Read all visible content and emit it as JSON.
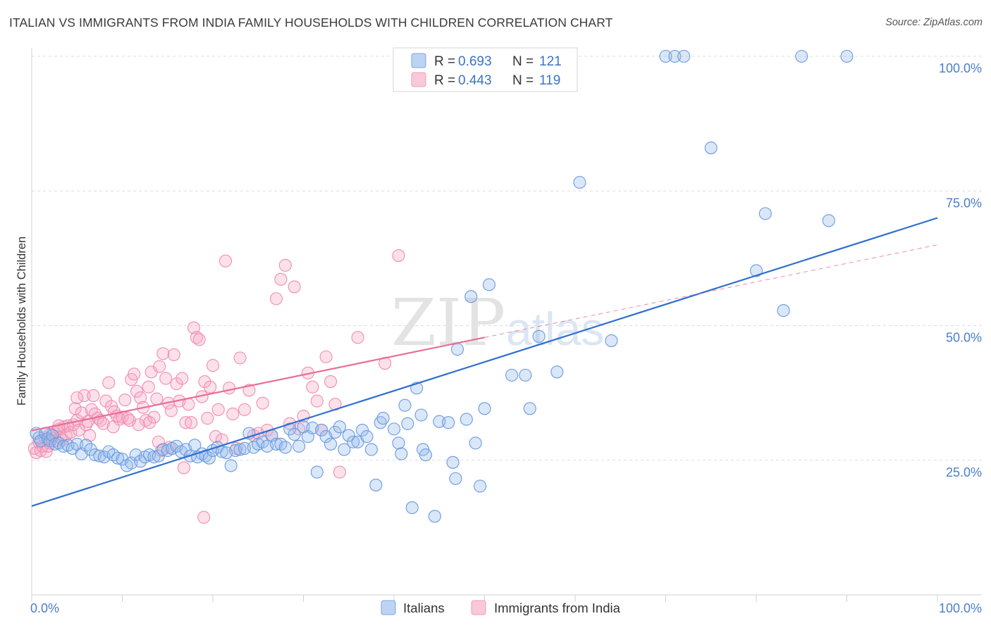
{
  "title": "ITALIAN VS IMMIGRANTS FROM INDIA FAMILY HOUSEHOLDS WITH CHILDREN CORRELATION CHART",
  "source": "Source: ZipAtlas.com",
  "watermark": {
    "zip": "ZIP",
    "atlas": "atlas"
  },
  "colors": {
    "italians": "#6a9be0",
    "india": "#f08db0",
    "italians_line": "#2f6fd0",
    "india_line": "#e86d96",
    "tick_label": "#4a7fc8",
    "grid": "#dcdcdc"
  },
  "legend": {
    "rows": [
      {
        "r_label": "R =",
        "r_value": "0.693",
        "n_label": "N =",
        "n_value": "121"
      },
      {
        "r_label": "R =",
        "r_value": "0.443",
        "n_label": "N =",
        "n_value": "119"
      }
    ]
  },
  "bottom_legend": [
    "Italians",
    "Immigrants from India"
  ],
  "chart_data": {
    "type": "scatter",
    "title": "ITALIAN VS IMMIGRANTS FROM INDIA FAMILY HOUSEHOLDS WITH CHILDREN CORRELATION CHART",
    "xlabel": "",
    "ylabel": "Family Households with Children",
    "xlim": [
      0,
      100
    ],
    "ylim": [
      0,
      100
    ],
    "x_tick_labels": [
      "0.0%",
      "100.0%"
    ],
    "y_tick_labels": [
      "100.0%",
      "75.0%",
      "50.0%",
      "25.0%"
    ],
    "y_ticks": [
      100,
      75,
      50,
      25
    ],
    "grid": true,
    "legend_position": "top-center",
    "series": [
      {
        "name": "Italians",
        "r": 0.693,
        "n": 121,
        "trend": {
          "x0": 0,
          "y0": 16.5,
          "x1": 100,
          "y1": 70.0,
          "style": "solid"
        },
        "points": [
          [
            0.5,
            30.0
          ],
          [
            0.8,
            29.2
          ],
          [
            1.0,
            28.6
          ],
          [
            1.5,
            30.0
          ],
          [
            1.8,
            29.0
          ],
          [
            2.0,
            28.6
          ],
          [
            2.3,
            29.6
          ],
          [
            2.6,
            28.0
          ],
          [
            3.0,
            28.2
          ],
          [
            3.5,
            27.6
          ],
          [
            4.0,
            27.8
          ],
          [
            4.5,
            27.2
          ],
          [
            5.0,
            28.0
          ],
          [
            5.5,
            26.2
          ],
          [
            6.0,
            27.8
          ],
          [
            6.5,
            27.0
          ],
          [
            7.0,
            26.0
          ],
          [
            7.5,
            25.8
          ],
          [
            8.0,
            25.6
          ],
          [
            8.5,
            26.6
          ],
          [
            9.0,
            26.0
          ],
          [
            9.5,
            25.4
          ],
          [
            10.0,
            25.2
          ],
          [
            10.5,
            24.0
          ],
          [
            11.0,
            24.5
          ],
          [
            11.5,
            26.0
          ],
          [
            12.0,
            24.8
          ],
          [
            12.5,
            25.6
          ],
          [
            13.0,
            26.0
          ],
          [
            13.5,
            25.6
          ],
          [
            14.0,
            25.8
          ],
          [
            14.5,
            27.0
          ],
          [
            15.0,
            26.8
          ],
          [
            15.5,
            27.2
          ],
          [
            16.0,
            27.6
          ],
          [
            16.5,
            26.6
          ],
          [
            17.0,
            27.0
          ],
          [
            17.5,
            25.8
          ],
          [
            18.0,
            27.8
          ],
          [
            18.3,
            25.6
          ],
          [
            18.8,
            26.2
          ],
          [
            19.2,
            25.8
          ],
          [
            19.6,
            25.4
          ],
          [
            20.0,
            26.8
          ],
          [
            20.5,
            27.4
          ],
          [
            21.0,
            26.6
          ],
          [
            21.5,
            26.4
          ],
          [
            22.0,
            24.0
          ],
          [
            22.5,
            26.8
          ],
          [
            23.0,
            27.0
          ],
          [
            23.5,
            27.2
          ],
          [
            24.0,
            30.0
          ],
          [
            24.5,
            27.4
          ],
          [
            25.0,
            28.0
          ],
          [
            25.5,
            28.4
          ],
          [
            26.0,
            27.6
          ],
          [
            26.5,
            29.6
          ],
          [
            27.0,
            28.0
          ],
          [
            27.5,
            28.0
          ],
          [
            28.0,
            27.4
          ],
          [
            28.5,
            30.8
          ],
          [
            29.0,
            29.8
          ],
          [
            29.5,
            27.6
          ],
          [
            30.0,
            31.2
          ],
          [
            30.5,
            29.4
          ],
          [
            31.0,
            31.0
          ],
          [
            31.5,
            22.8
          ],
          [
            32.0,
            30.6
          ],
          [
            32.5,
            29.4
          ],
          [
            33.0,
            28.0
          ],
          [
            33.5,
            30.2
          ],
          [
            34.0,
            31.2
          ],
          [
            34.5,
            27.0
          ],
          [
            35.0,
            29.6
          ],
          [
            35.5,
            28.4
          ],
          [
            36.0,
            28.4
          ],
          [
            36.5,
            30.6
          ],
          [
            37.0,
            29.4
          ],
          [
            37.5,
            27.0
          ],
          [
            38.0,
            20.4
          ],
          [
            38.5,
            32.0
          ],
          [
            38.8,
            32.8
          ],
          [
            40.0,
            30.8
          ],
          [
            40.5,
            28.2
          ],
          [
            40.8,
            26.2
          ],
          [
            41.2,
            35.2
          ],
          [
            41.5,
            31.8
          ],
          [
            42.0,
            16.2
          ],
          [
            42.5,
            38.4
          ],
          [
            43.0,
            33.4
          ],
          [
            43.2,
            27.0
          ],
          [
            44.5,
            14.6
          ],
          [
            45.0,
            32.2
          ],
          [
            46.0,
            32.0
          ],
          [
            46.5,
            24.6
          ],
          [
            46.8,
            21.6
          ],
          [
            47.0,
            45.6
          ],
          [
            48.0,
            32.6
          ],
          [
            48.5,
            55.4
          ],
          [
            49.0,
            28.2
          ],
          [
            49.5,
            20.2
          ],
          [
            50.0,
            34.6
          ],
          [
            50.5,
            57.6
          ],
          [
            55.0,
            34.6
          ],
          [
            54.5,
            40.8
          ],
          [
            53.0,
            40.8
          ],
          [
            56.0,
            48.0
          ],
          [
            58.0,
            41.4
          ],
          [
            60.5,
            76.6
          ],
          [
            64.0,
            47.2
          ],
          [
            70.0,
            100.0
          ],
          [
            71.0,
            100.0
          ],
          [
            81.0,
            70.8
          ],
          [
            83.0,
            52.8
          ],
          [
            80.0,
            60.2
          ],
          [
            85.0,
            100.0
          ],
          [
            90.0,
            100.0
          ],
          [
            88.0,
            69.5
          ],
          [
            75.0,
            83.0
          ],
          [
            72.0,
            100.0
          ],
          [
            43.5,
            26.0
          ]
        ]
      },
      {
        "name": "Immigrants from India",
        "r": 0.443,
        "n": 119,
        "trend": {
          "x0": 0,
          "y0": 30.5,
          "x1": 50,
          "y1": 47.8,
          "style": "solid"
        },
        "trend_ext": {
          "x0": 50,
          "y0": 47.8,
          "x1": 100,
          "y1": 65.0,
          "style": "dashed"
        },
        "points": [
          [
            0.3,
            27.2
          ],
          [
            0.5,
            26.4
          ],
          [
            0.8,
            28.4
          ],
          [
            1.0,
            26.8
          ],
          [
            1.2,
            27.6
          ],
          [
            1.4,
            29.2
          ],
          [
            1.6,
            26.6
          ],
          [
            1.8,
            27.6
          ],
          [
            2.0,
            28.2
          ],
          [
            2.2,
            29.0
          ],
          [
            2.4,
            30.2
          ],
          [
            2.6,
            28.6
          ],
          [
            2.8,
            30.4
          ],
          [
            3.0,
            30.8
          ],
          [
            3.2,
            29.2
          ],
          [
            3.4,
            28.8
          ],
          [
            3.6,
            31.2
          ],
          [
            3.8,
            29.6
          ],
          [
            4.0,
            31.4
          ],
          [
            4.3,
            30.2
          ],
          [
            4.6,
            31.6
          ],
          [
            4.8,
            34.6
          ],
          [
            5.0,
            32.4
          ],
          [
            5.2,
            30.6
          ],
          [
            5.5,
            33.8
          ],
          [
            5.8,
            37.0
          ],
          [
            6.0,
            31.6
          ],
          [
            6.2,
            32.2
          ],
          [
            6.4,
            29.6
          ],
          [
            6.6,
            34.4
          ],
          [
            6.8,
            37.0
          ],
          [
            7.0,
            33.6
          ],
          [
            7.3,
            32.8
          ],
          [
            7.6,
            32.4
          ],
          [
            7.9,
            31.8
          ],
          [
            8.2,
            36.0
          ],
          [
            8.5,
            39.4
          ],
          [
            8.8,
            35.0
          ],
          [
            9.1,
            34.0
          ],
          [
            9.4,
            33.2
          ],
          [
            9.7,
            32.6
          ],
          [
            10.0,
            33.0
          ],
          [
            10.3,
            36.2
          ],
          [
            10.6,
            32.8
          ],
          [
            11.0,
            40.0
          ],
          [
            11.3,
            41.0
          ],
          [
            11.6,
            37.8
          ],
          [
            12.0,
            36.6
          ],
          [
            12.3,
            34.8
          ],
          [
            12.6,
            32.4
          ],
          [
            12.9,
            38.6
          ],
          [
            13.2,
            41.4
          ],
          [
            13.5,
            33.0
          ],
          [
            13.8,
            36.4
          ],
          [
            14.1,
            42.4
          ],
          [
            14.5,
            44.8
          ],
          [
            14.8,
            40.2
          ],
          [
            15.1,
            35.6
          ],
          [
            15.4,
            34.2
          ],
          [
            15.7,
            44.6
          ],
          [
            16.0,
            39.2
          ],
          [
            16.3,
            36.0
          ],
          [
            16.6,
            40.2
          ],
          [
            17.0,
            32.0
          ],
          [
            17.3,
            35.4
          ],
          [
            17.6,
            32.0
          ],
          [
            17.9,
            49.6
          ],
          [
            18.2,
            47.8
          ],
          [
            18.5,
            47.4
          ],
          [
            18.8,
            36.8
          ],
          [
            19.1,
            39.6
          ],
          [
            19.4,
            32.8
          ],
          [
            19.7,
            38.6
          ],
          [
            20.0,
            42.6
          ],
          [
            20.3,
            29.4
          ],
          [
            20.6,
            34.4
          ],
          [
            21.0,
            28.8
          ],
          [
            21.4,
            62.0
          ],
          [
            21.8,
            38.4
          ],
          [
            22.2,
            33.6
          ],
          [
            22.6,
            27.2
          ],
          [
            23.0,
            44.0
          ],
          [
            23.5,
            34.4
          ],
          [
            24.0,
            38.0
          ],
          [
            24.5,
            29.6
          ],
          [
            25.0,
            30.0
          ],
          [
            25.5,
            35.6
          ],
          [
            26.0,
            30.6
          ],
          [
            26.5,
            29.6
          ],
          [
            27.0,
            55.0
          ],
          [
            27.5,
            58.6
          ],
          [
            28.0,
            61.2
          ],
          [
            28.5,
            31.8
          ],
          [
            29.0,
            57.2
          ],
          [
            29.5,
            30.8
          ],
          [
            30.0,
            33.2
          ],
          [
            30.5,
            41.2
          ],
          [
            31.0,
            38.6
          ],
          [
            31.5,
            36.0
          ],
          [
            32.0,
            30.6
          ],
          [
            32.5,
            44.2
          ],
          [
            33.0,
            39.6
          ],
          [
            33.5,
            35.4
          ],
          [
            34.0,
            22.8
          ],
          [
            14.0,
            28.4
          ],
          [
            14.3,
            26.8
          ],
          [
            15.2,
            27.4
          ],
          [
            16.8,
            23.6
          ],
          [
            13.0,
            32.0
          ],
          [
            11.8,
            31.6
          ],
          [
            10.8,
            32.4
          ],
          [
            9.0,
            31.2
          ],
          [
            5.0,
            36.6
          ],
          [
            3.0,
            31.4
          ],
          [
            2.0,
            29.8
          ],
          [
            19.0,
            14.4
          ],
          [
            40.5,
            63.0
          ],
          [
            39.0,
            43.0
          ],
          [
            36.0,
            47.8
          ]
        ]
      }
    ]
  }
}
